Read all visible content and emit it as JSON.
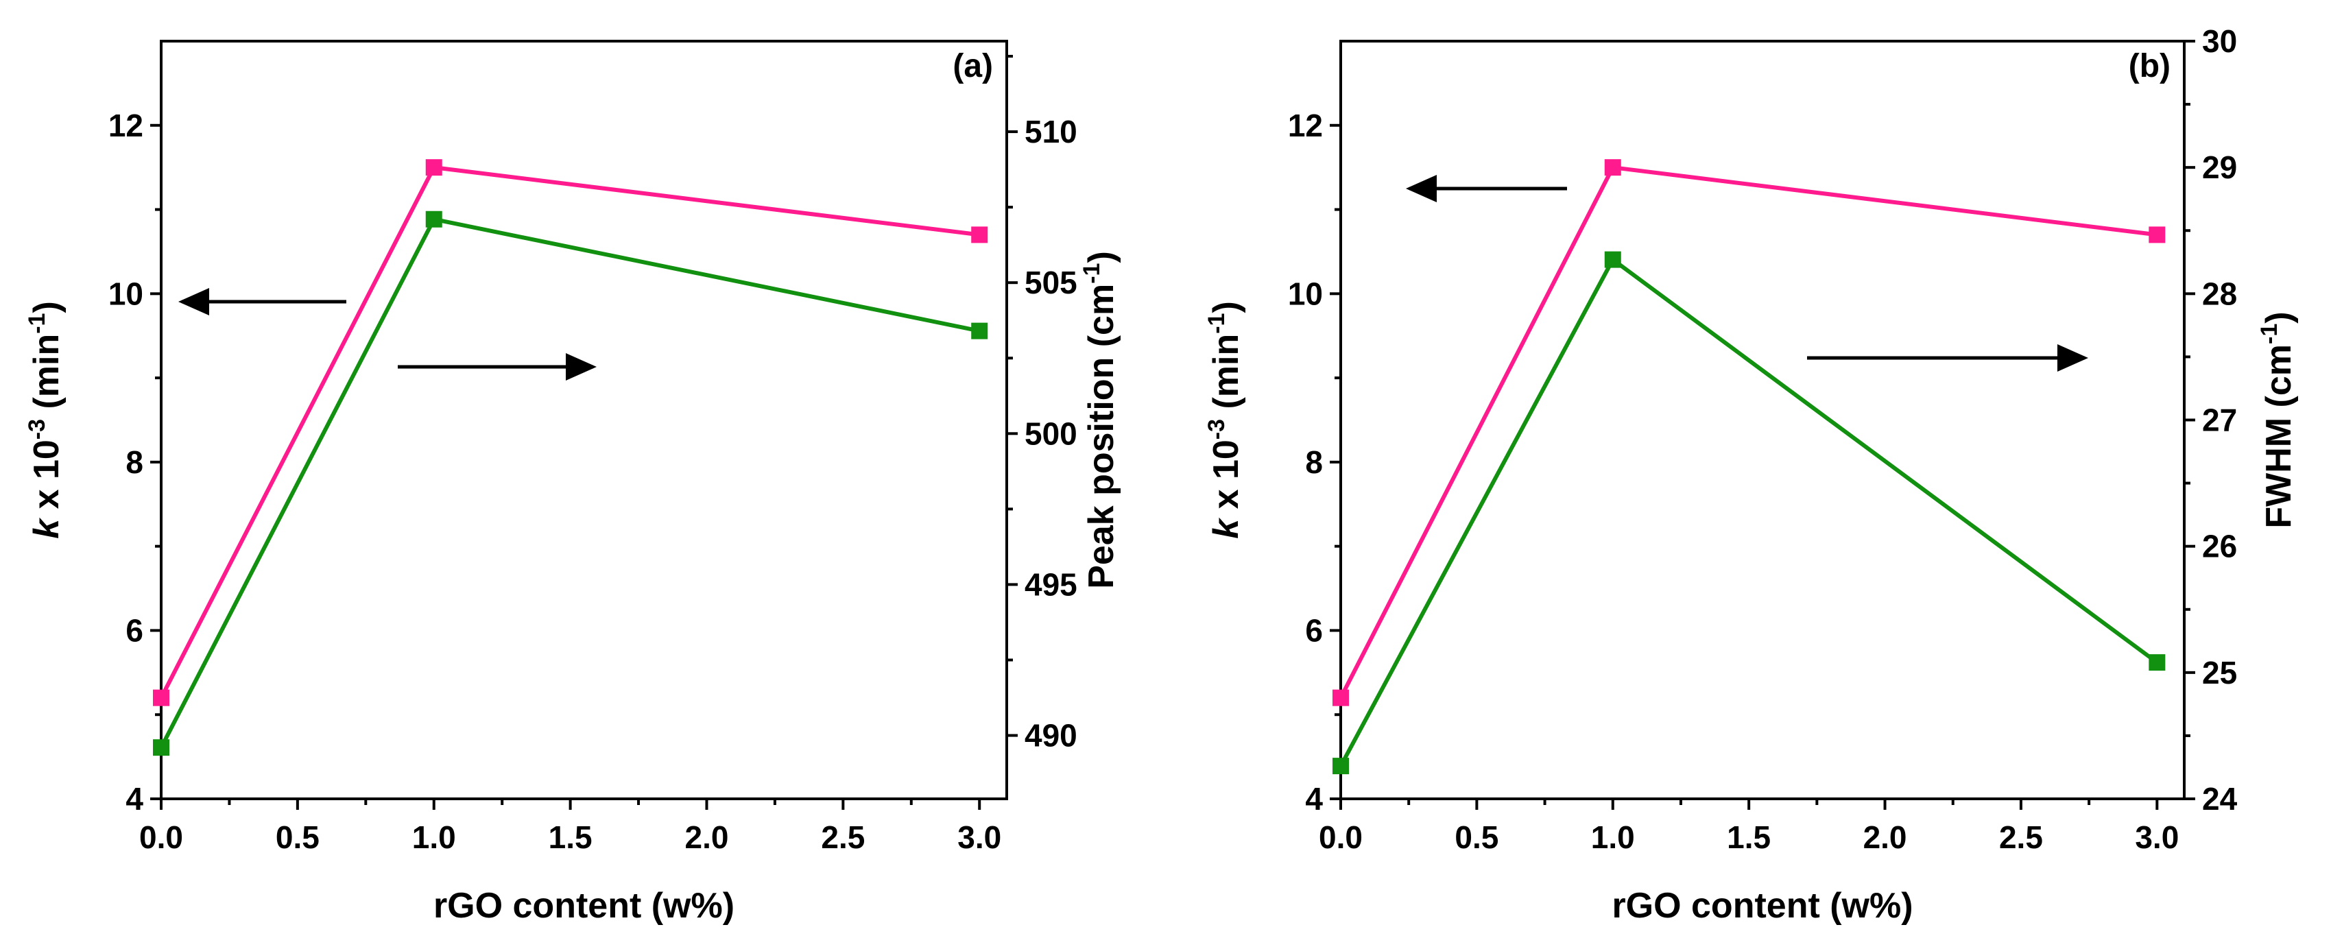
{
  "chart_data": [
    {
      "type": "line",
      "panel_label": "(a)",
      "xlabel": "rGO content (w%)",
      "xlim": [
        0,
        3.1
      ],
      "x_ticks": [
        "0.0",
        "0.5",
        "1.0",
        "1.5",
        "2.0",
        "2.5",
        "3.0"
      ],
      "ylabel_left": {
        "var": "k",
        "mult": " x 10",
        "exp": "-3",
        "unit_open": " (min",
        "unit_exp": "-1",
        "unit_close": ")"
      },
      "ylim_left": [
        4,
        13
      ],
      "y_ticks_left": [
        "4",
        "6",
        "8",
        "10",
        "12"
      ],
      "ylabel_right": {
        "text": "Peak position (cm",
        "exp": "-1",
        "close": ")"
      },
      "ylim_right": [
        487.9,
        513
      ],
      "y_ticks_right": [
        "490",
        "495",
        "500",
        "505",
        "510"
      ],
      "series": [
        {
          "name": "k",
          "axis": "left",
          "color": "#ff1b8d",
          "x": [
            0,
            1,
            3
          ],
          "values": [
            5.2,
            11.5,
            10.7
          ]
        },
        {
          "name": "Peak position",
          "axis": "right",
          "color": "#12900f",
          "x": [
            0,
            1,
            3
          ],
          "values": [
            489.6,
            507.1,
            503.4
          ]
        }
      ],
      "annotations": [
        {
          "type": "arrow",
          "direction": "left",
          "points_to": "left axis"
        },
        {
          "type": "arrow",
          "direction": "right",
          "points_to": "right axis"
        }
      ]
    },
    {
      "type": "line",
      "panel_label": "(b)",
      "xlabel": "rGO content (w%)",
      "xlim": [
        0,
        3.1
      ],
      "x_ticks": [
        "0.0",
        "0.5",
        "1.0",
        "1.5",
        "2.0",
        "2.5",
        "3.0"
      ],
      "ylabel_left": {
        "var": "k",
        "mult": " x 10",
        "exp": "-3",
        "unit_open": " (min",
        "unit_exp": "-1",
        "unit_close": ")"
      },
      "ylim_left": [
        4,
        13
      ],
      "y_ticks_left": [
        "4",
        "6",
        "8",
        "10",
        "12"
      ],
      "ylabel_right": {
        "text": "FWHM (cm",
        "exp": "-1",
        "close": ")"
      },
      "ylim_right": [
        24,
        30
      ],
      "y_ticks_right": [
        "24",
        "25",
        "26",
        "27",
        "28",
        "29",
        "30"
      ],
      "series": [
        {
          "name": "k",
          "axis": "left",
          "color": "#ff1b8d",
          "x": [
            0,
            1,
            3
          ],
          "values": [
            5.2,
            11.5,
            10.7
          ]
        },
        {
          "name": "FWHM",
          "axis": "right",
          "color": "#12900f",
          "x": [
            0,
            1,
            3
          ],
          "values": [
            24.26,
            28.27,
            25.08
          ]
        }
      ],
      "annotations": [
        {
          "type": "arrow",
          "direction": "left",
          "points_to": "left axis"
        },
        {
          "type": "arrow",
          "direction": "right",
          "points_to": "right axis"
        }
      ]
    }
  ]
}
